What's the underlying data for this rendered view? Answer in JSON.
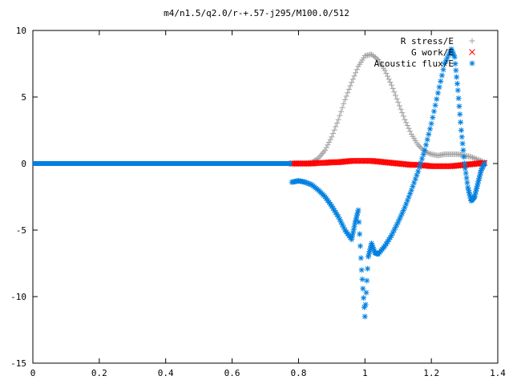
{
  "chart_data": {
    "type": "scatter",
    "title": "m4/n1.5/q2.0/r-+.57-j295/M100.0/512",
    "xlabel": "",
    "ylabel": "",
    "xlim": [
      0,
      1.4
    ],
    "ylim": [
      -15,
      10
    ],
    "xticks": [
      "0",
      "0.2",
      "0.4",
      "0.6",
      "0.8",
      "1",
      "1.2",
      "1.4"
    ],
    "yticks": [
      "10",
      "5",
      "0",
      "-5",
      "-10",
      "-15"
    ],
    "xtick_values": [
      0,
      0.2,
      0.4,
      0.6,
      0.8,
      1.0,
      1.2,
      1.4
    ],
    "ytick_values": [
      10,
      5,
      0,
      -5,
      -10,
      -15
    ],
    "grid": false,
    "legend_position": "top-right",
    "series": [
      {
        "name": "R stress/E",
        "marker": "plus",
        "color": "#a0a0a0",
        "x": [
          0.78,
          0.8,
          0.82,
          0.84,
          0.86,
          0.88,
          0.9,
          0.92,
          0.94,
          0.96,
          0.98,
          1.0,
          1.02,
          1.04,
          1.06,
          1.08,
          1.1,
          1.12,
          1.14,
          1.16,
          1.18,
          1.2,
          1.22,
          1.24,
          1.26,
          1.28,
          1.3,
          1.32,
          1.34,
          1.36
        ],
        "y": [
          0.0,
          0.0,
          0.0,
          0.1,
          0.4,
          1.0,
          2.0,
          3.3,
          4.8,
          6.1,
          7.3,
          8.1,
          8.2,
          7.8,
          7.0,
          5.9,
          4.6,
          3.3,
          2.2,
          1.4,
          0.9,
          0.7,
          0.6,
          0.7,
          0.7,
          0.7,
          0.6,
          0.5,
          0.3,
          0.1
        ]
      },
      {
        "name": "G work/E",
        "marker": "cross",
        "color": "#ff0000",
        "x": [
          0.78,
          0.8,
          0.82,
          0.84,
          0.86,
          0.88,
          0.9,
          0.92,
          0.94,
          0.96,
          0.98,
          1.0,
          1.02,
          1.04,
          1.06,
          1.08,
          1.1,
          1.12,
          1.14,
          1.16,
          1.18,
          1.2,
          1.22,
          1.24,
          1.26,
          1.28,
          1.3,
          1.32,
          1.34,
          1.36
        ],
        "y": [
          0.0,
          0.0,
          0.0,
          0.0,
          0.05,
          0.05,
          0.1,
          0.1,
          0.15,
          0.2,
          0.2,
          0.2,
          0.2,
          0.15,
          0.1,
          0.05,
          0.0,
          -0.05,
          -0.1,
          -0.1,
          -0.15,
          -0.2,
          -0.2,
          -0.2,
          -0.2,
          -0.15,
          -0.1,
          -0.05,
          0.0,
          0.05
        ]
      },
      {
        "name": "Acoustic flux/E",
        "marker": "star",
        "color": "#0080e0",
        "x": [
          0.78,
          0.8,
          0.82,
          0.84,
          0.86,
          0.88,
          0.9,
          0.92,
          0.94,
          0.96,
          0.97,
          0.98,
          0.99,
          1.0,
          1.01,
          1.02,
          1.03,
          1.04,
          1.06,
          1.08,
          1.1,
          1.12,
          1.14,
          1.16,
          1.18,
          1.2,
          1.22,
          1.24,
          1.26,
          1.27,
          1.28,
          1.29,
          1.3,
          1.31,
          1.32,
          1.33,
          1.34,
          1.35,
          1.36
        ],
        "y": [
          -1.4,
          -1.3,
          -1.4,
          -1.6,
          -2.0,
          -2.5,
          -3.2,
          -4.0,
          -5.0,
          -5.7,
          -4.5,
          -3.5,
          -8.0,
          -11.5,
          -7.0,
          -6.0,
          -6.7,
          -6.8,
          -6.2,
          -5.4,
          -4.4,
          -3.3,
          -2.0,
          -0.6,
          1.0,
          3.0,
          5.3,
          7.5,
          8.6,
          8.0,
          5.5,
          2.5,
          0.0,
          -1.8,
          -2.8,
          -2.5,
          -1.5,
          -0.5,
          0.0
        ]
      }
    ]
  }
}
